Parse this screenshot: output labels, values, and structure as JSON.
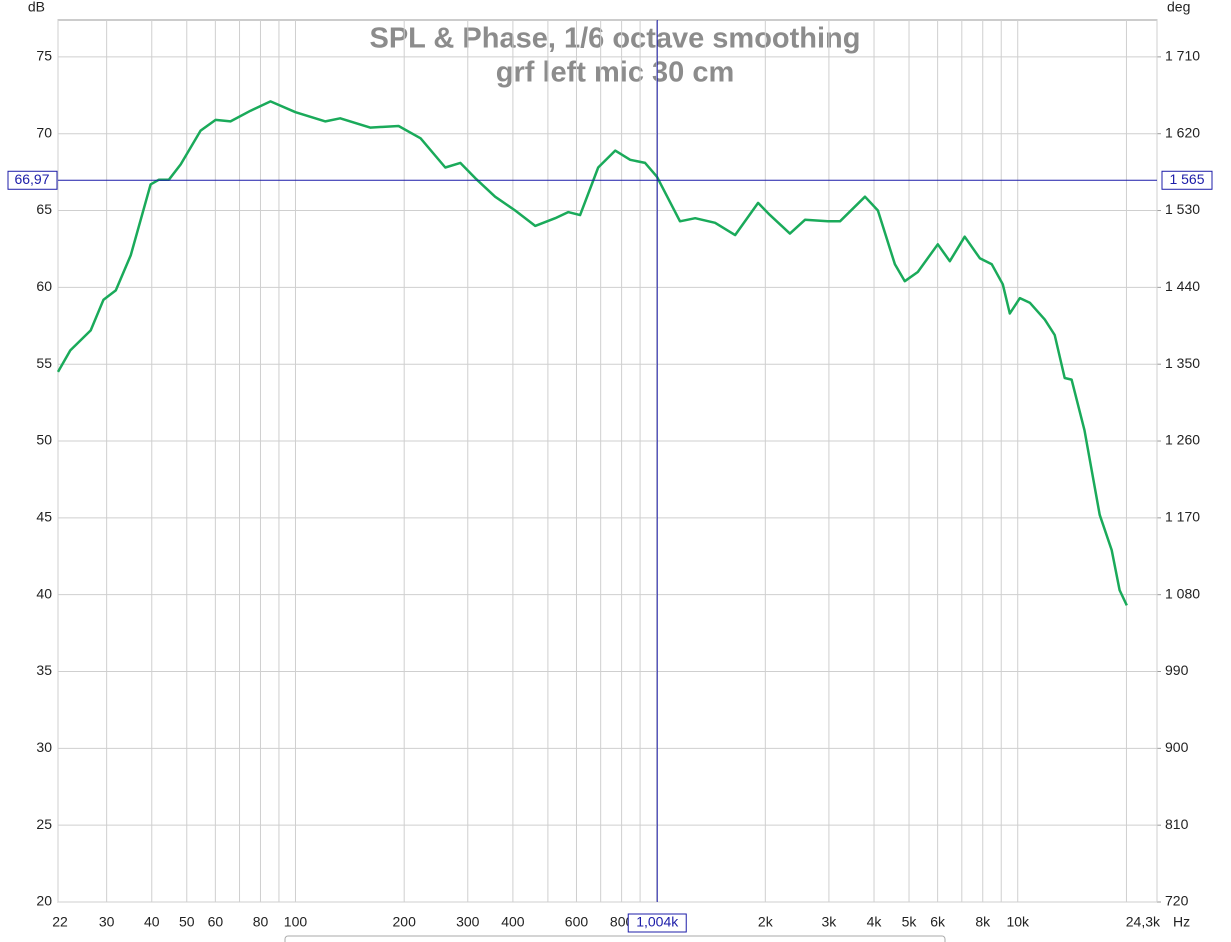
{
  "chart_data": {
    "type": "line",
    "title": "SPL & Phase, 1/6 octave smoothing",
    "subtitle": "grf left mic 30 cm",
    "x_unit": "Hz",
    "y_unit": "dB",
    "y2_unit": "deg",
    "xscale": "log",
    "xlim": [
      22,
      24300
    ],
    "ylim": [
      20,
      77.4
    ],
    "y2lim": [
      720,
      1753.2
    ],
    "grid": true,
    "xticks": [
      22,
      30,
      40,
      50,
      60,
      80,
      100,
      200,
      300,
      400,
      600,
      800,
      {
        "value": 2000,
        "label": "2k"
      },
      {
        "value": 3000,
        "label": "3k"
      },
      {
        "value": 4000,
        "label": "4k"
      },
      {
        "value": 5000,
        "label": "5k"
      },
      {
        "value": 6000,
        "label": "6k"
      },
      {
        "value": 8000,
        "label": "8k"
      },
      {
        "value": 10000,
        "label": "10k"
      },
      {
        "value": 24300,
        "label": "24,3k"
      }
    ],
    "x_minor_ticks": [
      70,
      90,
      500,
      700,
      900,
      1000,
      7000,
      9000,
      20000
    ],
    "yticks": [
      20,
      25,
      30,
      35,
      40,
      45,
      50,
      55,
      60,
      65,
      70,
      75
    ],
    "y2ticks": [
      720,
      810,
      900,
      990,
      {
        "value": 1080,
        "label": "1 080"
      },
      {
        "value": 1170,
        "label": "1 170"
      },
      {
        "value": 1260,
        "label": "1 260"
      },
      {
        "value": 1350,
        "label": "1 350"
      },
      {
        "value": 1440,
        "label": "1 440"
      },
      {
        "value": 1530,
        "label": "1 530"
      },
      {
        "value": 1620,
        "label": "1 620"
      },
      {
        "value": 1710,
        "label": "1 710"
      }
    ],
    "cursor": {
      "x": 1004,
      "x_label": "1,004k",
      "y": 66.97,
      "y_label": "66,97",
      "y2": 1565,
      "y2_label": "1 565"
    },
    "series": [
      {
        "color": "#1aaa5a",
        "x": [
          22,
          23.8,
          27.1,
          29.4,
          31.8,
          35,
          39.7,
          41.8,
          44.6,
          48.1,
          54.6,
          60.1,
          66.1,
          75.1,
          85.3,
          100,
          121,
          133,
          161,
          193,
          222,
          260,
          286,
          315,
          357,
          406,
          461,
          524,
          569,
          614,
          689,
          768,
          845,
          929,
          1002,
          1161,
          1279,
          1452,
          1649,
          1910,
          2061,
          2339,
          2576,
          2981,
          3219,
          3776,
          4101,
          4570,
          4867,
          5286,
          6006,
          6484,
          7132,
          7851,
          8477,
          9094,
          9506,
          10137,
          10797,
          11885,
          12660,
          13490,
          14100,
          15310,
          16860,
          18200,
          19150,
          20040
        ],
        "values": [
          54.5,
          55.9,
          57.2,
          59.2,
          59.8,
          62.1,
          66.7,
          67.0,
          67.0,
          68.0,
          70.2,
          70.9,
          70.8,
          71.5,
          72.1,
          71.4,
          70.8,
          71.0,
          70.4,
          70.5,
          69.7,
          67.8,
          68.1,
          67.1,
          65.9,
          65.0,
          64.0,
          64.5,
          64.9,
          64.7,
          67.8,
          68.9,
          68.3,
          68.1,
          67.2,
          64.3,
          64.5,
          64.2,
          63.4,
          65.5,
          64.7,
          63.5,
          64.4,
          64.3,
          64.3,
          65.9,
          65.0,
          61.5,
          60.4,
          61.0,
          62.8,
          61.7,
          63.3,
          61.9,
          61.5,
          60.2,
          58.3,
          59.3,
          59.0,
          57.9,
          56.9,
          54.1,
          54.0,
          50.7,
          45.2,
          42.9,
          40.3,
          39.3
        ]
      }
    ]
  }
}
